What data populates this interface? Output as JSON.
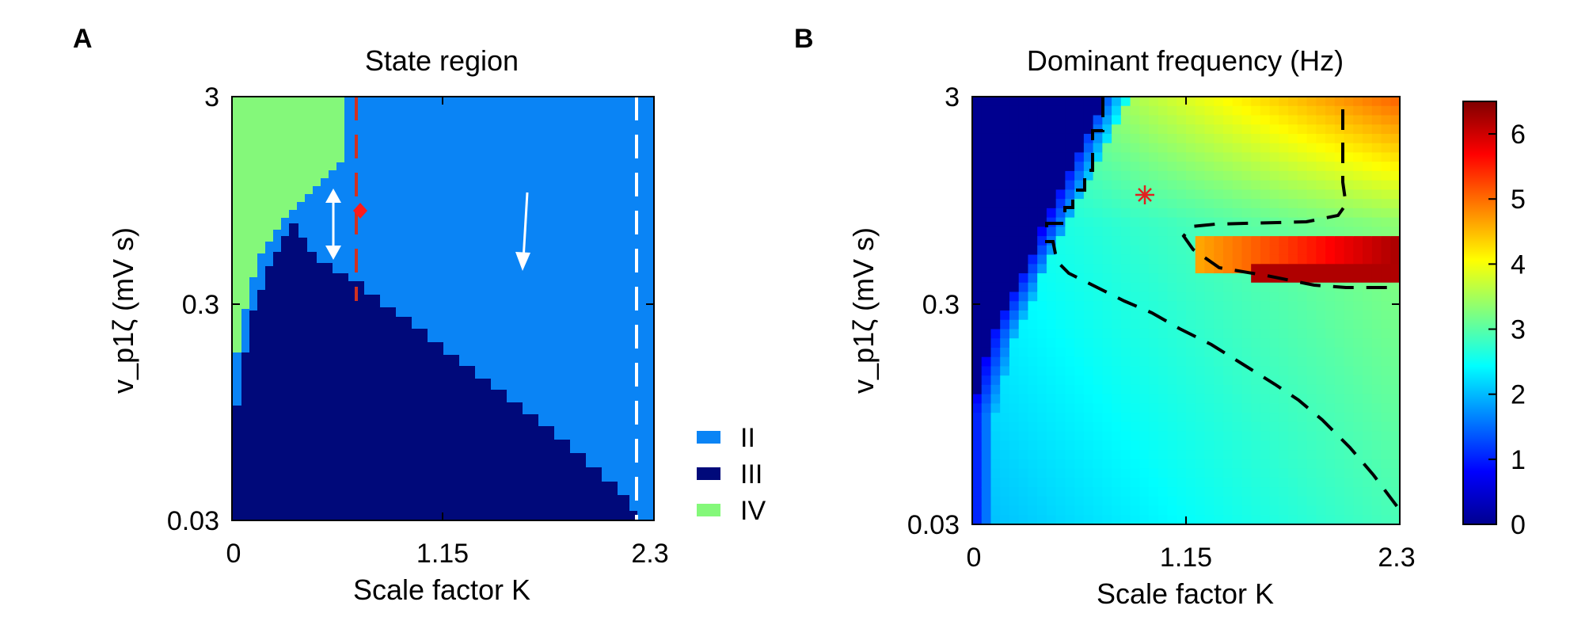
{
  "chart_data": [
    {
      "panel": "A",
      "type": "heatmap",
      "title": "State region",
      "xlabel": "Scale factor K",
      "ylabel": "v_p1ζ (mV s)",
      "x_ticks": [
        "0",
        "1.15",
        "2.3"
      ],
      "y_ticks": [
        "3",
        "0.3",
        "0.03"
      ],
      "xlim": [
        0,
        2.3
      ],
      "ylim": [
        0.03,
        3
      ],
      "y_scale": "log",
      "legend": [
        {
          "label": "II",
          "color": "#0a84f5"
        },
        {
          "label": "III",
          "color": "#00097a"
        },
        {
          "label": "IV",
          "color": "#84f87a"
        }
      ],
      "legend_position": "right",
      "region_colors": {
        "II": "#0a84f5",
        "III": "#00097a",
        "IV": "#84f87a"
      },
      "region_boundaries": {
        "III_upper_edge": {
          "K": [
            0,
            0.05,
            0.1,
            0.15,
            0.2,
            0.25,
            0.3,
            0.35,
            0.4,
            0.5,
            0.6,
            0.7,
            0.8,
            0.9,
            1.0,
            1.1,
            1.2,
            1.3,
            1.4,
            1.5,
            1.6,
            1.7,
            1.8,
            1.9,
            2.0,
            2.1,
            2.2,
            2.3
          ],
          "v": [
            0.08,
            0.13,
            0.18,
            0.24,
            0.34,
            0.47,
            0.56,
            0.45,
            0.39,
            0.34,
            0.31,
            0.28,
            0.24,
            0.21,
            0.18,
            0.155,
            0.13,
            0.112,
            0.097,
            0.083,
            0.072,
            0.062,
            0.053,
            0.045,
            0.039,
            0.033,
            0.03,
            0.03
          ]
        },
        "IV_right_edge": {
          "v": [
            3,
            2.0,
            1.5,
            1.15,
            0.9,
            0.75,
            0.6,
            0.5,
            0.42,
            0.35,
            0.3,
            0.25,
            0.2,
            0.16,
            0.13,
            0.1,
            0.08
          ],
          "K": [
            0.62,
            0.6,
            0.55,
            0.48,
            0.4,
            0.35,
            0.3,
            0.25,
            0.22,
            0.19,
            0.16,
            0.13,
            0.1,
            0.08,
            0.06,
            0.04,
            0.04
          ]
        }
      },
      "annotations": {
        "red_dashed_line_K": 0.67,
        "white_dashed_line_K": 2.2,
        "red_diamond": {
          "K": 0.67,
          "v": 0.85
        },
        "double_arrow": {
          "K": 0.55,
          "v_from": 1.3,
          "v_to": 0.42
        },
        "down_arrow": {
          "K_from": 1.6,
          "v_from": 1.35,
          "K_to": 1.57,
          "v_to": 0.4
        }
      }
    },
    {
      "panel": "B",
      "type": "heatmap",
      "title": "Dominant frequency (Hz)",
      "xlabel": "Scale factor K",
      "ylabel": "v_p1ζ (mV s)",
      "x_ticks": [
        "0",
        "1.15",
        "2.3"
      ],
      "y_ticks": [
        "3",
        "0.3",
        "0.03"
      ],
      "xlim": [
        0,
        2.3
      ],
      "ylim": [
        0.03,
        3
      ],
      "y_scale": "log",
      "colorbar": {
        "min": 0,
        "max": 6.5,
        "ticks": [
          "0",
          "1",
          "2",
          "3",
          "4",
          "5",
          "6"
        ],
        "colormap": "jet"
      },
      "annotations": {
        "red_star": {
          "K": 0.95,
          "v": 1.05
        }
      }
    }
  ]
}
